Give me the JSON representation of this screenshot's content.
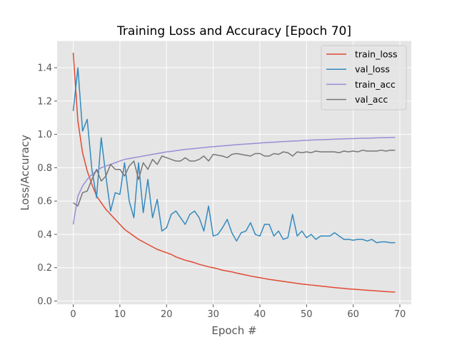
{
  "chart_data": {
    "type": "line",
    "title": "Training Loss and Accuracy [Epoch 70]",
    "xlabel": "Epoch #",
    "ylabel": "Loss/Accuracy",
    "xlim": [
      -3.45,
      72.45
    ],
    "ylim": [
      -0.02,
      1.56
    ],
    "xticks": [
      0,
      10,
      20,
      30,
      40,
      50,
      60,
      70
    ],
    "yticks": [
      0.0,
      0.2,
      0.4,
      0.6,
      0.8,
      1.0,
      1.2,
      1.4
    ],
    "grid": true,
    "legend_position": "top-right",
    "x": [
      0,
      1,
      2,
      3,
      4,
      5,
      6,
      7,
      8,
      9,
      10,
      11,
      12,
      13,
      14,
      15,
      16,
      17,
      18,
      19,
      20,
      21,
      22,
      23,
      24,
      25,
      26,
      27,
      28,
      29,
      30,
      31,
      32,
      33,
      34,
      35,
      36,
      37,
      38,
      39,
      40,
      41,
      42,
      43,
      44,
      45,
      46,
      47,
      48,
      49,
      50,
      51,
      52,
      53,
      54,
      55,
      56,
      57,
      58,
      59,
      60,
      61,
      62,
      63,
      64,
      65,
      66,
      67,
      68,
      69
    ],
    "series": [
      {
        "name": "train_loss",
        "color": "#e24a33",
        "values": [
          1.49,
          1.08,
          0.89,
          0.78,
          0.7,
          0.63,
          0.59,
          0.55,
          0.52,
          0.49,
          0.46,
          0.43,
          0.41,
          0.39,
          0.37,
          0.355,
          0.34,
          0.325,
          0.31,
          0.3,
          0.29,
          0.28,
          0.265,
          0.255,
          0.245,
          0.238,
          0.23,
          0.22,
          0.213,
          0.205,
          0.2,
          0.193,
          0.185,
          0.18,
          0.175,
          0.168,
          0.162,
          0.156,
          0.15,
          0.145,
          0.14,
          0.135,
          0.13,
          0.126,
          0.122,
          0.118,
          0.114,
          0.11,
          0.106,
          0.102,
          0.099,
          0.096,
          0.093,
          0.09,
          0.087,
          0.084,
          0.081,
          0.078,
          0.076,
          0.073,
          0.071,
          0.069,
          0.067,
          0.065,
          0.063,
          0.061,
          0.059,
          0.057,
          0.055,
          0.054
        ]
      },
      {
        "name": "val_loss",
        "color": "#348abd",
        "values": [
          1.14,
          1.4,
          1.02,
          1.09,
          0.79,
          0.62,
          0.98,
          0.75,
          0.54,
          0.65,
          0.64,
          0.83,
          0.6,
          0.5,
          0.83,
          0.53,
          0.73,
          0.5,
          0.61,
          0.42,
          0.44,
          0.52,
          0.54,
          0.5,
          0.46,
          0.52,
          0.54,
          0.5,
          0.42,
          0.57,
          0.39,
          0.4,
          0.44,
          0.49,
          0.41,
          0.36,
          0.41,
          0.42,
          0.47,
          0.4,
          0.39,
          0.46,
          0.46,
          0.39,
          0.42,
          0.37,
          0.38,
          0.52,
          0.39,
          0.42,
          0.38,
          0.4,
          0.37,
          0.39,
          0.39,
          0.39,
          0.41,
          0.39,
          0.37,
          0.37,
          0.365,
          0.37,
          0.37,
          0.36,
          0.37,
          0.35,
          0.355,
          0.355,
          0.35,
          0.35
        ]
      },
      {
        "name": "train_acc",
        "color": "#988ed5",
        "values": [
          0.46,
          0.63,
          0.69,
          0.73,
          0.76,
          0.78,
          0.8,
          0.81,
          0.82,
          0.83,
          0.84,
          0.85,
          0.855,
          0.86,
          0.865,
          0.87,
          0.875,
          0.88,
          0.885,
          0.89,
          0.895,
          0.898,
          0.902,
          0.906,
          0.91,
          0.912,
          0.915,
          0.918,
          0.921,
          0.924,
          0.926,
          0.929,
          0.931,
          0.933,
          0.936,
          0.938,
          0.94,
          0.942,
          0.944,
          0.946,
          0.948,
          0.95,
          0.952,
          0.953,
          0.955,
          0.957,
          0.958,
          0.96,
          0.961,
          0.963,
          0.964,
          0.966,
          0.967,
          0.968,
          0.969,
          0.97,
          0.971,
          0.972,
          0.973,
          0.974,
          0.975,
          0.976,
          0.977,
          0.977,
          0.978,
          0.979,
          0.98,
          0.98,
          0.981,
          0.981
        ]
      },
      {
        "name": "val_acc",
        "color": "#777777",
        "values": [
          0.59,
          0.57,
          0.65,
          0.66,
          0.73,
          0.79,
          0.72,
          0.75,
          0.82,
          0.79,
          0.79,
          0.75,
          0.81,
          0.84,
          0.73,
          0.83,
          0.79,
          0.85,
          0.82,
          0.87,
          0.86,
          0.85,
          0.84,
          0.84,
          0.86,
          0.84,
          0.84,
          0.85,
          0.87,
          0.84,
          0.88,
          0.875,
          0.87,
          0.86,
          0.88,
          0.885,
          0.88,
          0.875,
          0.87,
          0.885,
          0.885,
          0.87,
          0.87,
          0.885,
          0.88,
          0.895,
          0.89,
          0.87,
          0.895,
          0.89,
          0.895,
          0.89,
          0.9,
          0.895,
          0.895,
          0.895,
          0.895,
          0.89,
          0.9,
          0.895,
          0.9,
          0.895,
          0.905,
          0.9,
          0.9,
          0.9,
          0.905,
          0.9,
          0.905,
          0.905
        ]
      }
    ]
  }
}
